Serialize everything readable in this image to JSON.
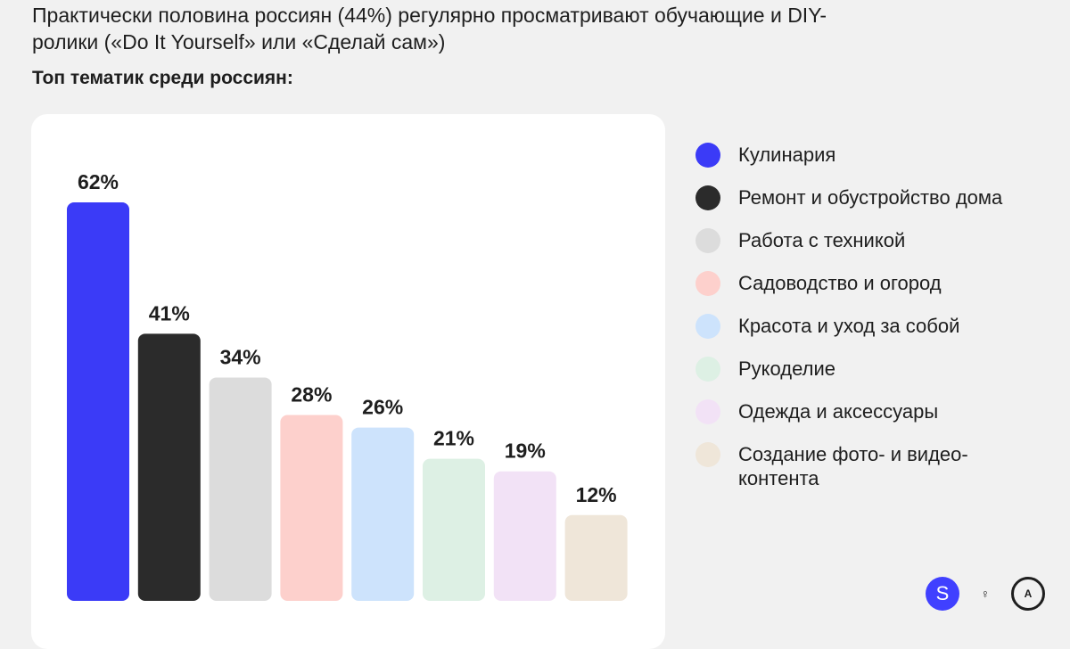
{
  "headline": "Практически половина россиян (44%) регулярно просматривают обучающие и DIY-ролики («Do It Yourself» или «Сделай сам»)",
  "subtitle": "Топ тематик среди россиян:",
  "chart_data": {
    "type": "bar",
    "title": "Топ тематик среди россиян:",
    "categories": [
      "Кулинария",
      "Ремонт и обустройство дома",
      "Работа с техникой",
      "Садоводство и огород",
      "Красота и уход за собой",
      "Рукоделие",
      "Одежда и аксессуары",
      "Создание фото- и видео-контента"
    ],
    "values": [
      62,
      41,
      34,
      28,
      26,
      21,
      19,
      12
    ],
    "labels": [
      "62%",
      "41%",
      "34%",
      "28%",
      "26%",
      "21%",
      "19%",
      "12%"
    ],
    "colors": [
      "#3b3bf7",
      "#2b2b2b",
      "#dcdcdc",
      "#fdd0cc",
      "#cde3fc",
      "#ddf0e4",
      "#f2e2f6",
      "#efe6d9"
    ],
    "unit": "%",
    "xlabel": "",
    "ylabel": "",
    "ylim": [
      0,
      62
    ],
    "grid": false,
    "legend_position": "right"
  },
  "legend": {
    "items": [
      {
        "label": "Кулинария",
        "color": "#3b3bf7"
      },
      {
        "label": "Ремонт и обустройство дома",
        "color": "#2b2b2b"
      },
      {
        "label": "Работа с техникой",
        "color": "#dcdcdc"
      },
      {
        "label": "Садоводство и огород",
        "color": "#fdd0cc"
      },
      {
        "label": "Красота и уход за собой",
        "color": "#cde3fc"
      },
      {
        "label": "Рукоделие",
        "color": "#ddf0e4"
      },
      {
        "label": "Одежда и аксессуары",
        "color": "#f2e2f6"
      },
      {
        "label": "Создание фото- и видео-контента",
        "color": "#efe6d9"
      }
    ]
  },
  "logos": {
    "s_icon_text": "S",
    "ok_icon_glyph": "♀",
    "a_icon_text": "A",
    "accent": "#4040ff"
  }
}
